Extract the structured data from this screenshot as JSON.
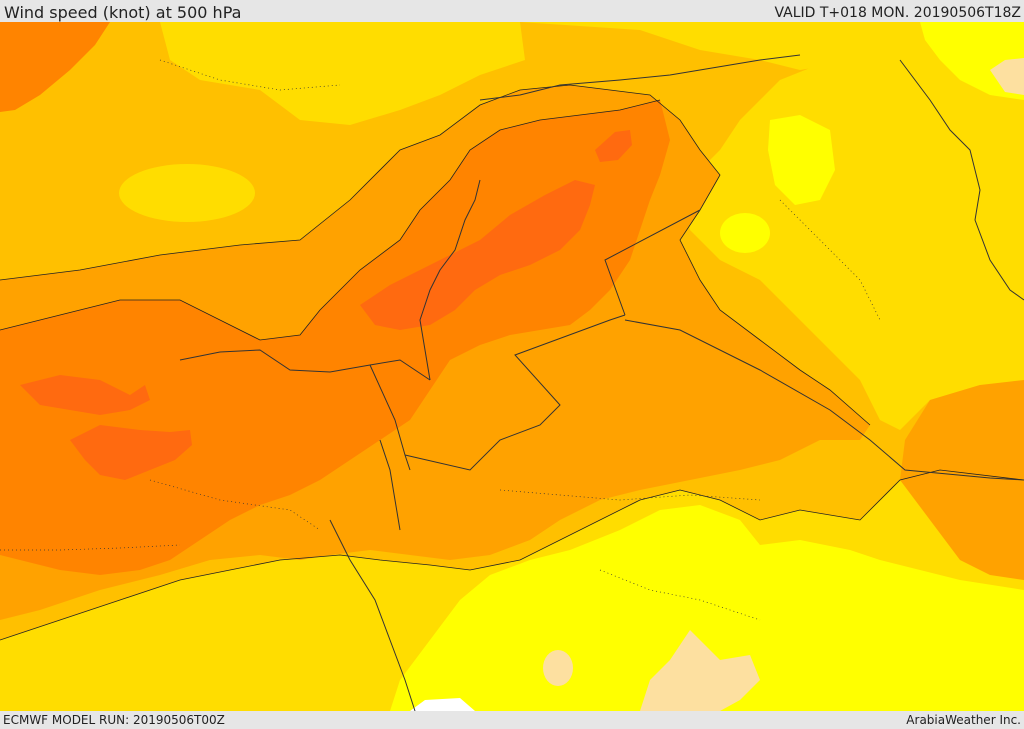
{
  "header": {
    "title": "Wind speed (knot) at 500 hPa",
    "valid_time": "VALID T+018 MON. 20190506T18Z"
  },
  "footer": {
    "model_run": "ECMWF MODEL RUN: 20190506T00Z",
    "provider": "ArabiaWeather Inc."
  },
  "map": {
    "variable": "wind speed",
    "units": "knot",
    "pressure_level": "500 hPa",
    "colors": {
      "calm_band": "#fde0a0",
      "band_1": "#ffff00",
      "band_2": "#ffdd00",
      "band_3": "#ffc000",
      "band_4": "#ffa200",
      "band_5": "#ff8400",
      "band_6": "#ff6a10",
      "coastline": "#222222",
      "border": "#333333"
    }
  }
}
